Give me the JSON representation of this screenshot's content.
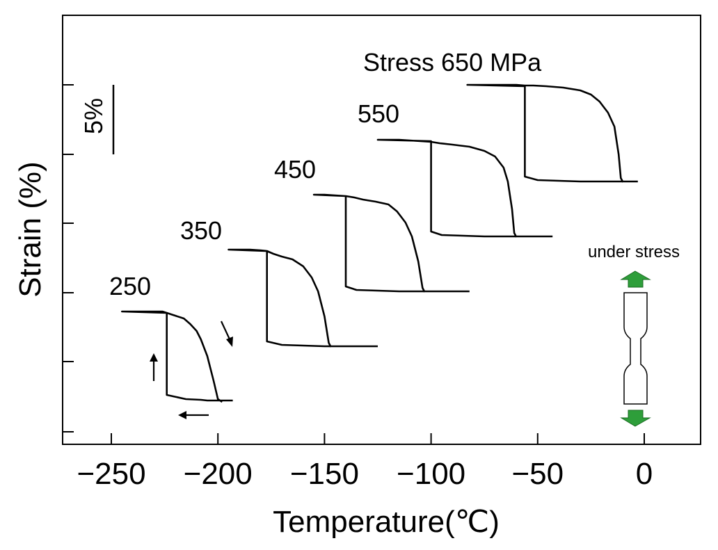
{
  "chart_data": {
    "type": "line",
    "title": "Stress 650 MPa",
    "xlabel": "Temperature(℃)",
    "ylabel": "Strain (%)",
    "xlim": [
      -270,
      25
    ],
    "xticks": [
      -250,
      -200,
      -150,
      -100,
      -50,
      0
    ],
    "xtick_labels": [
      "−250",
      "−200",
      "−150",
      "−100",
      "−50",
      "0"
    ],
    "y_tick_count": 6,
    "y_tick_labels_shown": false,
    "scale_bar": {
      "label": "5%",
      "value": 5
    },
    "annotation": "under stress",
    "grid": false,
    "series": [
      {
        "name": "250",
        "x": [
          -198,
          -200,
          -202,
          -205,
          -208,
          -210,
          -213,
          -216,
          -220,
          -224,
          -226,
          -230,
          -235,
          -240,
          -245,
          -224,
          -224,
          -215,
          -208,
          -205,
          -200,
          -195,
          -193
        ],
        "y": [
          0,
          0.2,
          1.5,
          3.3,
          4.5,
          5.1,
          5.6,
          6.0,
          6.2,
          6.4,
          6.5,
          6.5,
          6.5,
          6.5,
          6.5,
          6.4,
          0.5,
          0.2,
          0.15,
          0.1,
          0.1,
          0.1,
          0.1
        ]
      },
      {
        "name": "350",
        "x": [
          -147,
          -148,
          -150,
          -153,
          -156,
          -160,
          -165,
          -170,
          -174,
          -177,
          -180,
          -185,
          -190,
          -195,
          -177,
          -177,
          -170,
          -160,
          -150,
          -140,
          -130,
          -125
        ],
        "y": [
          0,
          0.3,
          2.2,
          4.0,
          5.0,
          5.8,
          6.3,
          6.5,
          6.7,
          6.9,
          6.95,
          7.0,
          7.0,
          7.0,
          6.9,
          0.4,
          0.15,
          0.1,
          0.05,
          0.05,
          0.05,
          0.05
        ]
      },
      {
        "name": "450",
        "x": [
          -103,
          -104,
          -106,
          -109,
          -112,
          -116,
          -120,
          -126,
          -132,
          -136,
          -140,
          -145,
          -150,
          -155,
          -140,
          -140,
          -135,
          -125,
          -115,
          -105,
          -95,
          -85,
          -82
        ],
        "y": [
          0,
          0.3,
          2.2,
          4.0,
          5.0,
          5.8,
          6.3,
          6.5,
          6.65,
          6.8,
          6.9,
          6.95,
          7.0,
          7.0,
          6.9,
          0.4,
          0.15,
          0.1,
          0.05,
          0.05,
          0.05,
          0.05,
          0.05
        ]
      },
      {
        "name": "550",
        "x": [
          -60,
          -61,
          -62,
          -64,
          -66,
          -70,
          -75,
          -82,
          -90,
          -96,
          -100,
          -105,
          -110,
          -115,
          -122,
          -125,
          -100,
          -100,
          -95,
          -85,
          -75,
          -65,
          -55,
          -45,
          -43
        ],
        "y": [
          0,
          0.3,
          2.0,
          4.0,
          5.0,
          5.8,
          6.2,
          6.5,
          6.65,
          6.75,
          6.85,
          6.9,
          6.95,
          7.0,
          7.0,
          7.0,
          6.9,
          0.4,
          0.15,
          0.1,
          0.05,
          0.05,
          0.05,
          0.05,
          0.05
        ]
      },
      {
        "name": "650",
        "x": [
          -10,
          -11,
          -12,
          -14,
          -17,
          -21,
          -25,
          -30,
          -38,
          -46,
          -52,
          -56,
          -60,
          -65,
          -70,
          -75,
          -80,
          -83,
          -56,
          -56,
          -50,
          -40,
          -30,
          -20,
          -10,
          -3
        ],
        "y": [
          0,
          0.3,
          2.0,
          4.0,
          5.0,
          5.8,
          6.3,
          6.6,
          6.8,
          6.9,
          6.95,
          6.95,
          7.0,
          7.0,
          7.0,
          7.0,
          7.0,
          7.0,
          6.9,
          0.4,
          0.15,
          0.1,
          0.05,
          0.05,
          0.05,
          0.05
        ]
      }
    ],
    "series_label_text": [
      "250",
      "350",
      "450",
      "550"
    ]
  }
}
